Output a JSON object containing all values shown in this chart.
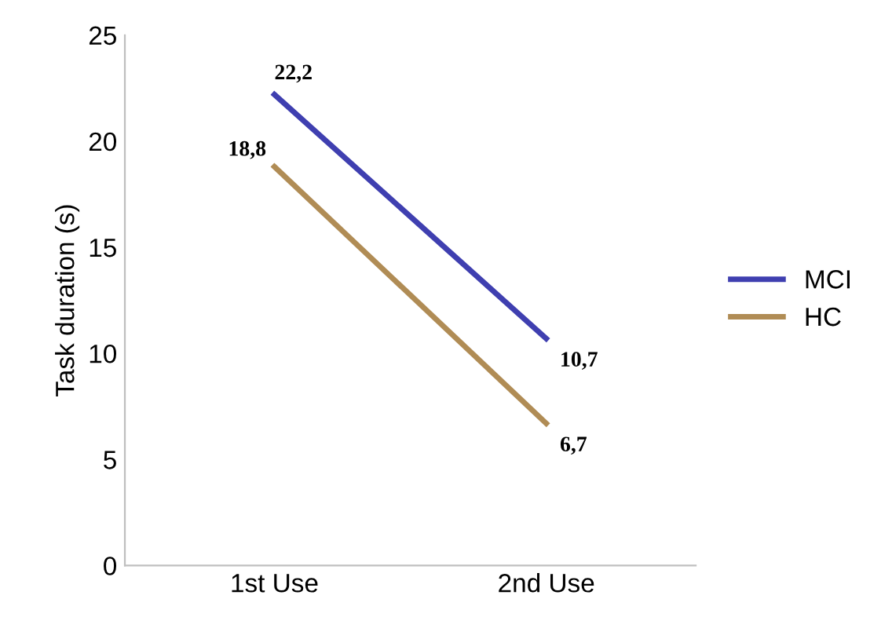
{
  "chart_data": {
    "type": "line",
    "ylabel": "Task duration (s)",
    "categories": [
      "1st Use",
      "2nd Use"
    ],
    "series": [
      {
        "name": "MCI",
        "color": "#3f3fb0",
        "values": [
          22.2,
          10.7
        ],
        "value_labels": [
          "22,2",
          "10,7"
        ]
      },
      {
        "name": "HC",
        "color": "#b08c55",
        "values": [
          18.8,
          6.7
        ],
        "value_labels": [
          "18,8",
          "6,7"
        ]
      }
    ],
    "ylim": [
      0,
      25
    ],
    "yticks": [
      0,
      5,
      10,
      15,
      20,
      25
    ],
    "grid": false,
    "legend": "right",
    "marker": "none",
    "line_style": "solid"
  }
}
